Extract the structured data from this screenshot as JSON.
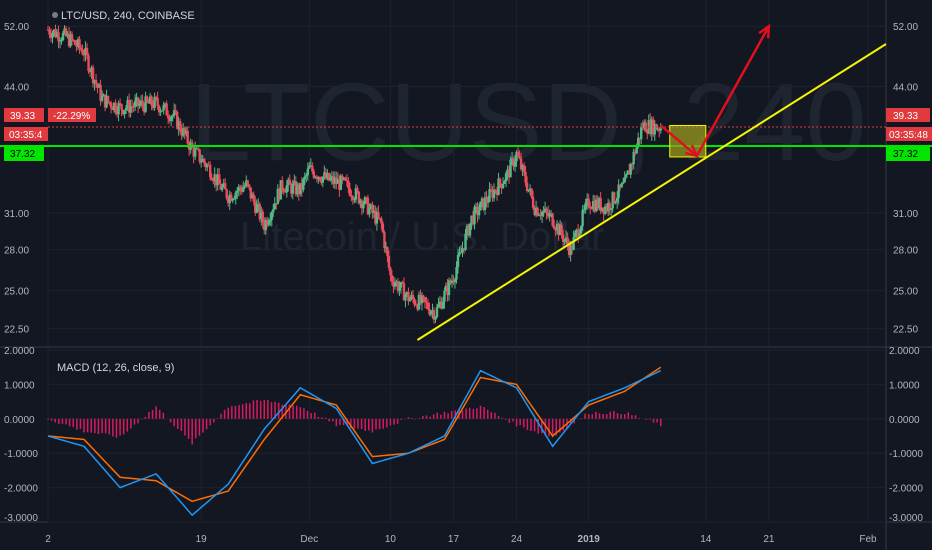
{
  "header": {
    "title": "LTC/USD, 240, COINBASE"
  },
  "watermark": {
    "symbol": "LTCUSD, 240",
    "description": "Litecoin / U.S. Dollar"
  },
  "price_tags": {
    "last_price": "39.33",
    "change_pct": "-22.29%",
    "countdown_left": "03:35:4",
    "countdown_right": "03:35:48",
    "level": "37.32"
  },
  "colors": {
    "background": "#131722",
    "up_candle": "#53b987",
    "down_candle": "#eb4d5c",
    "support_line": "#00e600",
    "trendline": "#f5f500",
    "arrow": "#e0101e",
    "zone": "#9b9b1f",
    "macd": "#2196f3",
    "signal": "#ff6d00",
    "histogram": "#d81b60",
    "last_price_tag": "#e03a3e",
    "level_tag": "#00e600"
  },
  "chart_data": [
    {
      "type": "line",
      "title": "LTC/USD, 240, COINBASE",
      "y_scale": "log",
      "ylim": [
        21.5,
        55
      ],
      "y_ticks": [
        "52.00",
        "44.00",
        "39.33",
        "37.32",
        "31.00",
        "28.00",
        "25.00",
        "22.50"
      ],
      "x_ticks": [
        "2",
        "19",
        "Dec",
        "10",
        "17",
        "24",
        "2019",
        "14",
        "21",
        "Feb"
      ],
      "series": [
        {
          "x": [
            "Nov 2",
            "Nov 4",
            "Nov 6",
            "Nov 8",
            "Nov 10",
            "Nov 12",
            "Nov 14",
            "Nov 16",
            "Nov 18",
            "Nov 20",
            "Nov 21",
            "Nov 22",
            "Nov 24",
            "Nov 26",
            "Nov 28",
            "Nov 30",
            "Dec 1",
            "Dec 3",
            "Dec 5",
            "Dec 7",
            "Dec 9",
            "Dec 10",
            "Dec 12",
            "Dec 14",
            "Dec 15",
            "Dec 17",
            "Dec 19",
            "Dec 21",
            "Dec 23",
            "Dec 24",
            "Dec 26",
            "Dec 28",
            "Dec 30",
            "Jan 1",
            "Jan 3",
            "Jan 5",
            "Jan 7",
            "Jan 9"
          ],
          "values": [
            51.5,
            50.5,
            48.5,
            42.5,
            41.5,
            41.8,
            42.0,
            40.5,
            37.0,
            35.0,
            33.5,
            32.5,
            33.5,
            30.0,
            33.5,
            33.0,
            35.0,
            34.0,
            33.5,
            32.0,
            30.0,
            26.0,
            24.5,
            24.0,
            23.5,
            26.0,
            30.5,
            32.5,
            34.5,
            36.5,
            31.5,
            30.5,
            28.0,
            32.0,
            31.5,
            33.5,
            39.5,
            39.33
          ]
        }
      ],
      "annotations": {
        "support_level": 37.32,
        "last_price": 39.33,
        "trendline": [
          {
            "x": "Dec 13",
            "y": 21.8
          },
          {
            "x": "Feb 3",
            "y": 49.5
          }
        ],
        "zone": {
          "x": [
            "Jan 10",
            "Jan 14"
          ],
          "y": [
            36.2,
            39.5
          ]
        },
        "arrow_path": [
          {
            "x": "Jan 9",
            "y": 39.5
          },
          {
            "x": "Jan 13",
            "y": 36.3
          },
          {
            "x": "Jan 21",
            "y": 52.0
          }
        ]
      }
    },
    {
      "type": "line",
      "title": "MACD (12, 26, close, 9)",
      "ylim": [
        -3.0,
        2.0
      ],
      "y_ticks": [
        "2.0000",
        "1.0000",
        "0.0000",
        "-1.0000",
        "-2.0000",
        "-3.0000"
      ],
      "series": [
        {
          "name": "MACD",
          "x": [
            "Nov 2",
            "Nov 6",
            "Nov 10",
            "Nov 14",
            "Nov 18",
            "Nov 22",
            "Nov 26",
            "Nov 30",
            "Dec 4",
            "Dec 8",
            "Dec 12",
            "Dec 16",
            "Dec 20",
            "Dec 24",
            "Dec 28",
            "Jan 1",
            "Jan 5",
            "Jan 9"
          ],
          "values": [
            -0.5,
            -0.8,
            -2.0,
            -1.6,
            -2.8,
            -1.9,
            -0.3,
            0.9,
            0.3,
            -1.3,
            -1.0,
            -0.5,
            1.4,
            0.9,
            -0.8,
            0.5,
            0.9,
            1.4
          ]
        },
        {
          "name": "Signal",
          "x": [
            "Nov 2",
            "Nov 6",
            "Nov 10",
            "Nov 14",
            "Nov 18",
            "Nov 22",
            "Nov 26",
            "Nov 30",
            "Dec 4",
            "Dec 8",
            "Dec 12",
            "Dec 16",
            "Dec 20",
            "Dec 24",
            "Dec 28",
            "Jan 1",
            "Jan 5",
            "Jan 9"
          ],
          "values": [
            -0.5,
            -0.6,
            -1.7,
            -1.8,
            -2.4,
            -2.1,
            -0.6,
            0.7,
            0.4,
            -1.1,
            -1.0,
            -0.6,
            1.2,
            1.0,
            -0.5,
            0.4,
            0.8,
            1.5
          ]
        }
      ]
    }
  ]
}
